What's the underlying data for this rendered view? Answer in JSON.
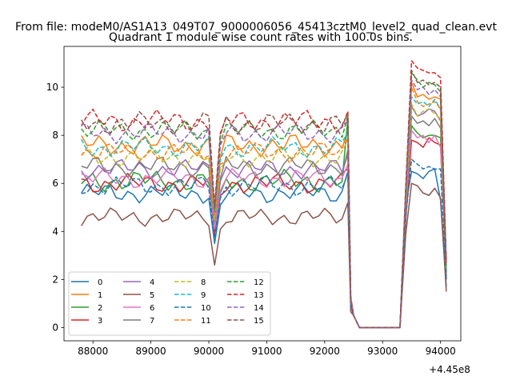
{
  "chart_data": {
    "type": "line",
    "suptitle": "From file: modeM0/AS1A13_049T07_9000006056_45413cztM0_level2_quad_clean.evt",
    "title": "Quadrant 1 module wise count rates with 100.0s bins.",
    "xlabel": "",
    "ylabel": "",
    "x_offset_label": "+4.45e8",
    "xlim": [
      87500,
      94350
    ],
    "ylim": [
      -0.55,
      11.7
    ],
    "xticks": [
      88000,
      89000,
      90000,
      91000,
      92000,
      93000,
      94000
    ],
    "xtick_labels": [
      "88000",
      "89000",
      "90000",
      "91000",
      "92000",
      "93000",
      "94000"
    ],
    "yticks": [
      0,
      2,
      4,
      6,
      8,
      10
    ],
    "ytick_labels": [
      "0",
      "2",
      "4",
      "6",
      "8",
      "10"
    ],
    "legend": {
      "placement": "lower-left",
      "columns": 4
    },
    "series_shape": {
      "x_start": 87800,
      "x_step": 100,
      "gap_start_x": 92500,
      "gap_end_x": 93300,
      "resume_x": 93400,
      "end_x": 94100,
      "dip_x": 90100,
      "end_values_x_from": 93500
    },
    "series": [
      {
        "name": "0",
        "color": "#1f77b4",
        "dash": "solid",
        "level": 5.6,
        "spread": 0.45,
        "dip": 3.5,
        "pre_gap_peak": 6.5,
        "post_gap": [
          5.1,
          6.5,
          6.4,
          6.2,
          6.5,
          6.6,
          5.3,
          1.7
        ]
      },
      {
        "name": "1",
        "color": "#ff7f0e",
        "dash": "solid",
        "level": 7.6,
        "spread": 0.5,
        "dip": 4.6,
        "pre_gap_peak": 8.2,
        "post_gap": [
          4.8,
          10.2,
          9.6,
          9.7,
          9.5,
          9.6,
          9.5,
          2.4
        ]
      },
      {
        "name": "2",
        "color": "#2ca02c",
        "dash": "solid",
        "level": 6.1,
        "spread": 0.5,
        "dip": 4.0,
        "pre_gap_peak": 8.7,
        "post_gap": [
          4.9,
          8.4,
          8.1,
          7.9,
          8.0,
          8.0,
          7.9,
          2.2
        ]
      },
      {
        "name": "3",
        "color": "#d62728",
        "dash": "solid",
        "level": 6.0,
        "spread": 0.45,
        "dip": 3.9,
        "pre_gap_peak": 6.6,
        "post_gap": [
          4.5,
          7.8,
          7.7,
          7.5,
          7.9,
          7.7,
          7.6,
          2.0
        ]
      },
      {
        "name": "4",
        "color": "#9467bd",
        "dash": "solid",
        "level": 6.6,
        "spread": 0.45,
        "dip": 4.2,
        "pre_gap_peak": 7.2,
        "post_gap": [
          4.9,
          9.2,
          8.8,
          8.9,
          9.1,
          9.0,
          8.6,
          2.3
        ]
      },
      {
        "name": "5",
        "color": "#8c564b",
        "dash": "solid",
        "level": 4.6,
        "spread": 0.4,
        "dip": 2.6,
        "pre_gap_peak": 5.2,
        "post_gap": [
          3.9,
          6.0,
          5.9,
          5.6,
          5.5,
          5.8,
          5.4,
          1.5
        ]
      },
      {
        "name": "6",
        "color": "#e377c2",
        "dash": "solid",
        "level": 6.2,
        "spread": 0.45,
        "dip": 4.1,
        "pre_gap_peak": 6.8,
        "post_gap": [
          5.0,
          8.2,
          7.9,
          8.0,
          7.7,
          8.0,
          7.5,
          2.1
        ]
      },
      {
        "name": "7",
        "color": "#7f7f7f",
        "dash": "solid",
        "level": 6.7,
        "spread": 0.45,
        "dip": 4.4,
        "pre_gap_peak": 7.4,
        "post_gap": [
          5.2,
          8.8,
          8.5,
          8.6,
          8.4,
          8.7,
          8.3,
          2.2
        ]
      },
      {
        "name": "8",
        "color": "#bcbd22",
        "dash": "dashed",
        "level": 7.1,
        "spread": 0.45,
        "dip": 4.5,
        "pre_gap_peak": 7.8,
        "post_gap": [
          5.3,
          9.3,
          8.8,
          9.0,
          9.1,
          8.9,
          8.7,
          2.4
        ]
      },
      {
        "name": "9",
        "color": "#17becf",
        "dash": "dashed",
        "level": 7.5,
        "spread": 0.45,
        "dip": 4.8,
        "pre_gap_peak": 8.1,
        "post_gap": [
          5.5,
          9.6,
          9.3,
          9.4,
          9.2,
          9.5,
          9.1,
          2.5
        ]
      },
      {
        "name": "10",
        "color": "#1f77b4",
        "dash": "dashed",
        "level": 5.9,
        "spread": 0.45,
        "dip": 3.7,
        "pre_gap_peak": 6.4,
        "post_gap": [
          4.6,
          7.0,
          6.8,
          6.6,
          6.7,
          6.6,
          6.6,
          2.0
        ]
      },
      {
        "name": "11",
        "color": "#ff7f0e",
        "dash": "dashed",
        "level": 7.3,
        "spread": 0.45,
        "dip": 4.7,
        "pre_gap_peak": 7.9,
        "post_gap": [
          5.4,
          10.0,
          9.4,
          9.2,
          9.3,
          9.4,
          9.1,
          2.5
        ]
      },
      {
        "name": "12",
        "color": "#2ca02c",
        "dash": "dashed",
        "level": 8.2,
        "spread": 0.45,
        "dip": 4.9,
        "pre_gap_peak": 8.8,
        "post_gap": [
          5.8,
          10.6,
          10.3,
          10.0,
          10.2,
          10.1,
          9.8,
          2.6
        ]
      },
      {
        "name": "13",
        "color": "#d62728",
        "dash": "dashed",
        "level": 8.6,
        "spread": 0.5,
        "dip": 5.1,
        "pre_gap_peak": 9.0,
        "post_gap": [
          5.9,
          11.1,
          10.8,
          10.7,
          10.6,
          10.6,
          10.4,
          2.7
        ]
      },
      {
        "name": "14",
        "color": "#9467bd",
        "dash": "dashed",
        "level": 8.1,
        "spread": 0.45,
        "dip": 4.8,
        "pre_gap_peak": 8.6,
        "post_gap": [
          5.7,
          10.3,
          9.9,
          10.0,
          9.7,
          9.9,
          9.6,
          2.6
        ]
      },
      {
        "name": "15",
        "color": "#8c564b",
        "dash": "dashed",
        "level": 8.5,
        "spread": 0.5,
        "dip": 5.0,
        "pre_gap_peak": 8.9,
        "post_gap": [
          5.8,
          10.7,
          10.2,
          10.3,
          10.1,
          10.2,
          10.0,
          2.6
        ]
      }
    ]
  }
}
